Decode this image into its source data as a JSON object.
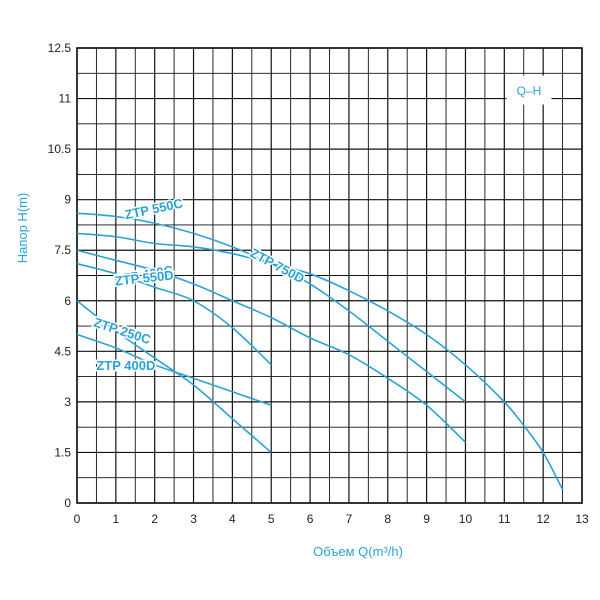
{
  "chart_data": {
    "type": "line",
    "xlabel": "Объем Q(m³/h)",
    "ylabel": "Напор H(m)",
    "legend": "Q–H",
    "xlim": [
      0,
      13
    ],
    "ylim": [
      0,
      12.5
    ],
    "x_ticks": [
      "0",
      "1",
      "2",
      "3",
      "4",
      "5",
      "6",
      "7",
      "8",
      "9",
      "10",
      "11",
      "12",
      "13"
    ],
    "y_ticks": [
      "0",
      "1.5",
      "3",
      "4.5",
      "6",
      "7.5",
      "9",
      "10.5",
      "11",
      "12.5"
    ],
    "grid": true,
    "colors": {
      "curve": "#2aa3d6",
      "grid": "#111111"
    },
    "series": [
      {
        "name": "ZTP 250C",
        "x": [
          0,
          1,
          2,
          3,
          4,
          5
        ],
        "y": [
          6.0,
          5.1,
          4.3,
          3.5,
          2.5,
          1.5
        ]
      },
      {
        "name": "ZTP 400D",
        "x": [
          0,
          1,
          2,
          3,
          4,
          5
        ],
        "y": [
          5.0,
          4.6,
          4.1,
          3.7,
          3.3,
          2.9
        ]
      },
      {
        "name": "ZTP 400C",
        "x": [
          0,
          1,
          2,
          3,
          4,
          5
        ],
        "y": [
          7.1,
          6.8,
          6.4,
          6.0,
          5.2,
          4.1
        ]
      },
      {
        "name": "ZTP 550C",
        "x": [
          0,
          1,
          2,
          3,
          4,
          5,
          6,
          7,
          8,
          9,
          10
        ],
        "y": [
          8.6,
          8.5,
          8.3,
          8.0,
          7.6,
          7.1,
          6.5,
          5.7,
          4.8,
          3.9,
          3.0
        ]
      },
      {
        "name": "ZTP 550D",
        "x": [
          0,
          1,
          2,
          3,
          4,
          5,
          6,
          7,
          8,
          9,
          10
        ],
        "y": [
          7.5,
          7.2,
          6.9,
          6.5,
          6.0,
          5.5,
          4.9,
          4.4,
          3.7,
          2.9,
          1.8
        ]
      },
      {
        "name": "ZTP 750D",
        "x": [
          0,
          1,
          2,
          3,
          4,
          5,
          6,
          7,
          8,
          9,
          10,
          11,
          11.5,
          12,
          12.5
        ],
        "y": [
          8.0,
          7.9,
          7.7,
          7.6,
          7.4,
          7.1,
          6.8,
          6.3,
          5.7,
          5.0,
          4.1,
          3.0,
          2.3,
          1.5,
          0.4
        ]
      }
    ],
    "curve_labels": [
      {
        "text": "ZTP 550C",
        "series": "ZTP 550C"
      },
      {
        "text": "ZTP 400C",
        "series": "ZTP 400C"
      },
      {
        "text": "ZTP 750D",
        "series": "ZTP 750D"
      },
      {
        "text": "ZTP 550D",
        "series": "ZTP 550D"
      },
      {
        "text": "ZTP 250C",
        "series": "ZTP 250C"
      },
      {
        "text": "ZTP 400D",
        "series": "ZTP 400D"
      }
    ]
  }
}
